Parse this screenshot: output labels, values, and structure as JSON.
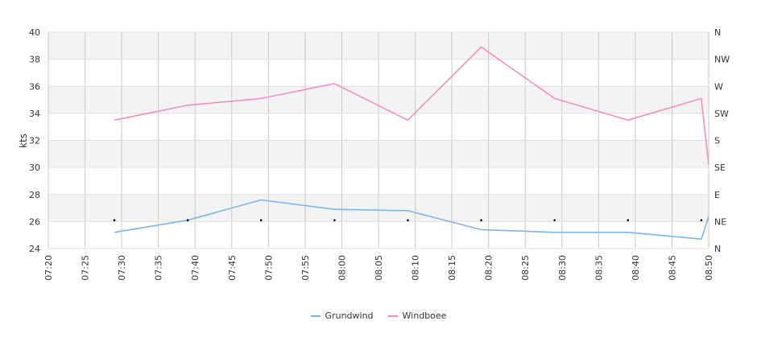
{
  "chart_data": {
    "type": "line",
    "ylabel": "kts",
    "ylim": [
      24,
      40
    ],
    "yticks": [
      24,
      26,
      28,
      30,
      32,
      34,
      36,
      38,
      40
    ],
    "right_axis_labels": [
      "N",
      "NE",
      "E",
      "SE",
      "S",
      "SW",
      "W",
      "NW",
      "N"
    ],
    "x_tick_labels": [
      "07:20",
      "07:25",
      "07:30",
      "07:35",
      "07:40",
      "07:45",
      "07:50",
      "07:55",
      "08:00",
      "08:05",
      "08:10",
      "08:15",
      "08:20",
      "08:25",
      "08:30",
      "08:35",
      "08:40",
      "08:45",
      "08:50"
    ],
    "grid": true,
    "legend_position": "bottom",
    "series": [
      {
        "name": "Grundwind",
        "color": "#7cb5ec",
        "x": [
          "07:29",
          "07:39",
          "07:49",
          "07:59",
          "08:09",
          "08:19",
          "08:29",
          "08:39",
          "08:49",
          "08:50"
        ],
        "values": [
          25.2,
          26.1,
          27.6,
          26.9,
          26.8,
          25.4,
          25.2,
          25.2,
          24.7,
          26.4
        ]
      },
      {
        "name": "Windboee",
        "color": "#f28fc1",
        "x": [
          "07:29",
          "07:39",
          "07:49",
          "07:59",
          "08:09",
          "08:19",
          "08:29",
          "08:39",
          "08:49",
          "08:50"
        ],
        "values": [
          33.5,
          34.6,
          35.1,
          36.2,
          33.5,
          38.9,
          35.1,
          33.5,
          35.1,
          30.2
        ]
      }
    ],
    "direction_markers": {
      "x": [
        "07:29",
        "07:39",
        "07:49",
        "07:59",
        "08:09",
        "08:19",
        "08:29",
        "08:39",
        "08:49"
      ],
      "value": 26.1
    }
  }
}
